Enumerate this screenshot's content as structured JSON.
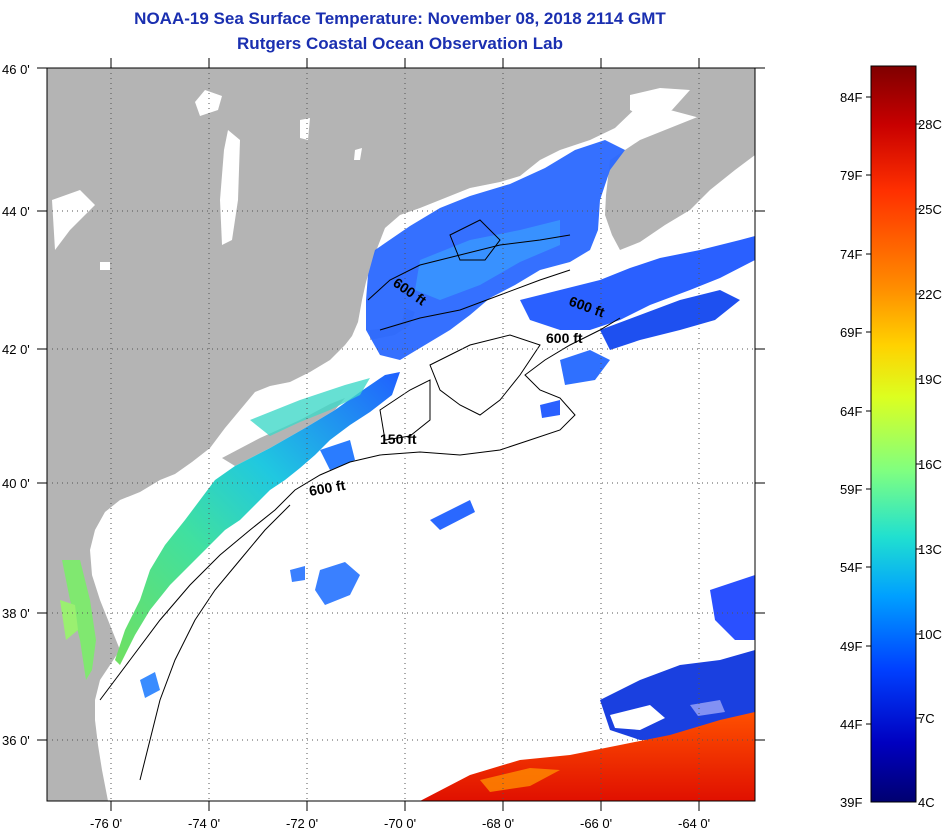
{
  "title": {
    "line1": "NOAA-19 Sea Surface Temperature:  November 08, 2018 2114 GMT",
    "line2": "Rutgers Coastal Ocean Observation Lab"
  },
  "map": {
    "lat_labels": [
      "46 0'",
      "44 0'",
      "42 0'",
      "40 0'",
      "38 0'",
      "36 0'"
    ],
    "lon_labels": [
      "-76 0'",
      "-74 0'",
      "-72 0'",
      "-70 0'",
      "-68 0'",
      "-66 0'",
      "-64 0'"
    ],
    "contour_labels": [
      "600 ft",
      "600 ft",
      "600 ft",
      "150 ft",
      "600 ft"
    ],
    "land_color": "#b4b4b4",
    "no_data_color": "#ffffff"
  },
  "colorbar": {
    "f_labels": [
      "84F",
      "79F",
      "74F",
      "69F",
      "64F",
      "59F",
      "54F",
      "49F",
      "44F",
      "39F"
    ],
    "c_labels": [
      "28C",
      "25C",
      "22C",
      "19C",
      "16C",
      "13C",
      "10C",
      "7C",
      "4C"
    ],
    "colors": [
      "#7f0000",
      "#c80000",
      "#ff3000",
      "#ff8c00",
      "#ffd200",
      "#dcff20",
      "#80ff80",
      "#20e0d0",
      "#00a0ff",
      "#0040ff",
      "#0000c0",
      "#000070"
    ]
  }
}
